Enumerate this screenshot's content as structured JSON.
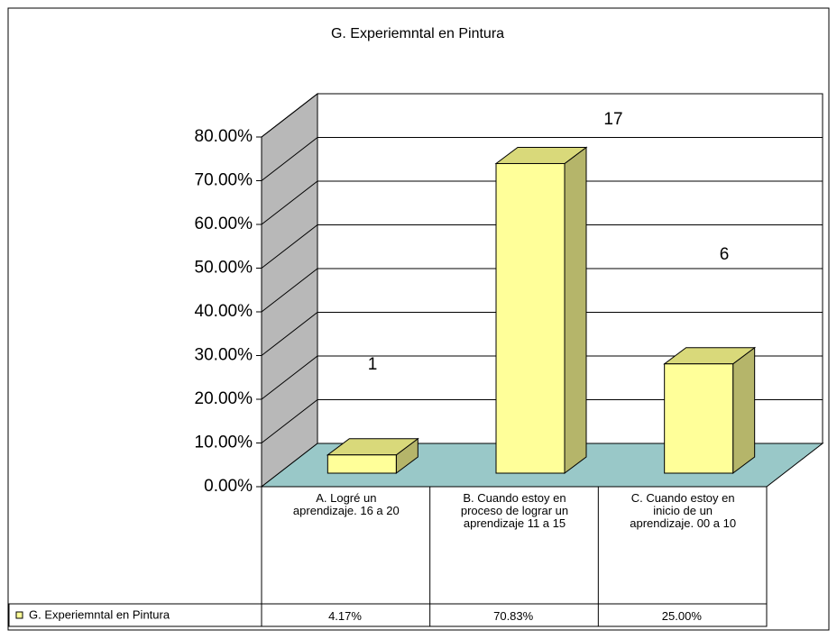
{
  "chart_data": {
    "type": "bar3d",
    "title": "G. Experiemntal en Pintura",
    "categories": [
      "A. Logré un aprendizaje. 16 a 20",
      "B. Cuando estoy en proceso de lograr un aprendizaje 11 a 15",
      "C. Cuando estoy en inicio de un aprendizaje. 00 a 10"
    ],
    "series": [
      {
        "name": "G. Experiemntal en Pintura",
        "color": "#ffff99",
        "values": [
          4.17,
          70.83,
          25.0
        ],
        "value_labels": [
          "4.17%",
          "70.83%",
          "25.00%"
        ]
      }
    ],
    "data_labels": [
      1,
      17,
      6
    ],
    "ylim": [
      0,
      80
    ],
    "yticks": [
      {
        "value": 0,
        "label": "0.00%"
      },
      {
        "value": 10,
        "label": "10.00%"
      },
      {
        "value": 20,
        "label": "20.00%"
      },
      {
        "value": 30,
        "label": "30.00%"
      },
      {
        "value": 40,
        "label": "40.00%"
      },
      {
        "value": 50,
        "label": "50.00%"
      },
      {
        "value": 60,
        "label": "60.00%"
      },
      {
        "value": 70,
        "label": "70.00%"
      },
      {
        "value": 80,
        "label": "80.00%"
      }
    ],
    "grid": true,
    "legend": "data-table"
  }
}
